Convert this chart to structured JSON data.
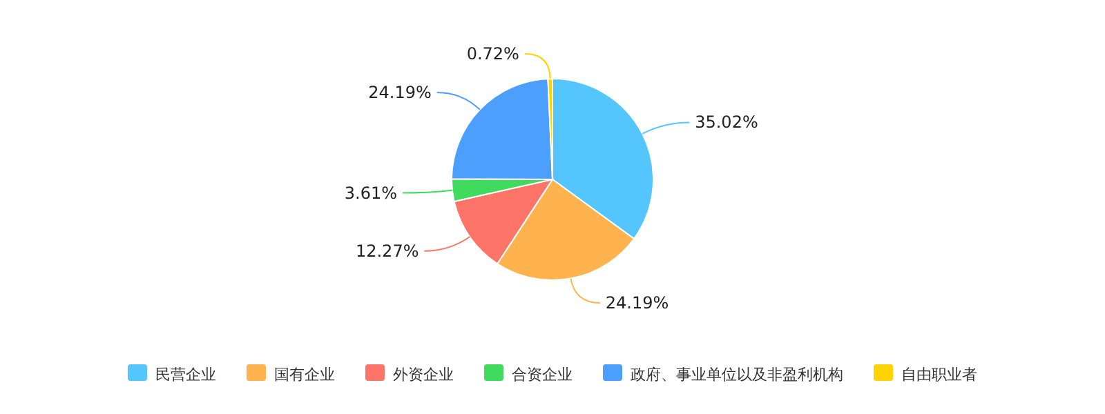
{
  "chart_data": {
    "type": "pie",
    "categories": [
      "民营企业",
      "国有企业",
      "外资企业",
      "合资企业",
      "政府、事业单位以及非盈利机构",
      "自由职业者"
    ],
    "values": [
      35.02,
      24.19,
      12.27,
      3.61,
      24.19,
      0.72
    ],
    "value_labels": [
      "35.02%",
      "24.19%",
      "12.27%",
      "3.61%",
      "24.19%",
      "0.72%"
    ],
    "colors": [
      "#55c6fd",
      "#ffb34f",
      "#ff7468",
      "#3fda5e",
      "#4d9ffe",
      "#ffd200"
    ],
    "legend": "bottom"
  }
}
